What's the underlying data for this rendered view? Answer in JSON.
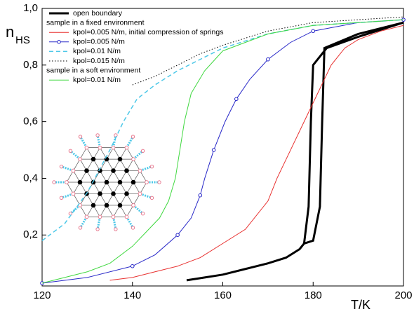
{
  "chart_data": {
    "type": "line",
    "ylabel": "n",
    "ylabel_sub": "HS",
    "xlabel": "T/K",
    "xlim": [
      120,
      200
    ],
    "xticks": [
      120,
      140,
      160,
      180,
      200
    ],
    "ylim": [
      0.02,
      1.0
    ],
    "yticks": [
      {
        "value": 0.2,
        "label": "0,2"
      },
      {
        "value": 0.4,
        "label": "0,4"
      },
      {
        "value": 0.6,
        "label": "0,6"
      },
      {
        "value": 0.8,
        "label": "0,8"
      },
      {
        "value": 1.0,
        "label": "1,0"
      }
    ],
    "legend_headings": [
      "sample in a fixed environment",
      "sample in a soft environment"
    ],
    "series": [
      {
        "name": "open boundary",
        "color": "#000000",
        "width": 3,
        "dash": "solid",
        "x": [
          152,
          156,
          160,
          165,
          170,
          174,
          177,
          178,
          179,
          179.5,
          180,
          183,
          190,
          200,
          190,
          184,
          182.5,
          182,
          181.5,
          180,
          178
        ],
        "values": [
          0.04,
          0.05,
          0.06,
          0.08,
          0.1,
          0.12,
          0.15,
          0.17,
          0.3,
          0.6,
          0.8,
          0.86,
          0.9,
          0.95,
          0.91,
          0.87,
          0.86,
          0.6,
          0.3,
          0.18,
          0.17
        ]
      },
      {
        "name": "kpol=0.005 N/m, initial compression of springs",
        "color": "#e8302f",
        "width": 1,
        "dash": "solid",
        "x": [
          135,
          140,
          145,
          150,
          155,
          160,
          165,
          170,
          172,
          175,
          178,
          181,
          184,
          187,
          190,
          195,
          200
        ],
        "values": [
          0.04,
          0.05,
          0.07,
          0.09,
          0.12,
          0.17,
          0.22,
          0.32,
          0.4,
          0.5,
          0.6,
          0.7,
          0.8,
          0.86,
          0.89,
          0.92,
          0.94
        ]
      },
      {
        "name": "kpol=0.005 N/m",
        "color": "#2828c8",
        "width": 1,
        "dash": "solid",
        "marker": "circle",
        "x": [
          120,
          130,
          140,
          145,
          150,
          153,
          155,
          156,
          158,
          160.5,
          163,
          166,
          170,
          175,
          180,
          190,
          200
        ],
        "values": [
          0.03,
          0.05,
          0.09,
          0.13,
          0.2,
          0.26,
          0.34,
          0.4,
          0.5,
          0.6,
          0.68,
          0.75,
          0.82,
          0.88,
          0.92,
          0.95,
          0.96
        ]
      },
      {
        "name": "kpol=0.01 N/m",
        "color": "#4dc8e8",
        "width": 1.5,
        "dash": "dashed",
        "x": [
          120,
          125,
          130,
          135,
          138,
          141,
          145,
          150,
          155,
          160,
          170,
          180,
          200
        ],
        "values": [
          0.18,
          0.24,
          0.35,
          0.5,
          0.6,
          0.68,
          0.73,
          0.78,
          0.82,
          0.86,
          0.91,
          0.94,
          0.96
        ]
      },
      {
        "name": "kpol=0.015 N/m",
        "color": "#000000",
        "width": 1,
        "dash": "dotted",
        "x": [
          140,
          145,
          150,
          155,
          160,
          170,
          180,
          200
        ],
        "values": [
          0.73,
          0.76,
          0.8,
          0.84,
          0.87,
          0.92,
          0.95,
          0.97
        ]
      },
      {
        "name": "kpol=0.01 N/m",
        "color": "#40d840",
        "width": 1,
        "dash": "solid",
        "x": [
          120,
          130,
          135,
          140,
          143,
          146,
          148,
          149.5,
          150.5,
          151.5,
          153,
          156,
          160,
          170,
          180,
          200
        ],
        "values": [
          0.03,
          0.07,
          0.1,
          0.16,
          0.21,
          0.26,
          0.32,
          0.4,
          0.5,
          0.6,
          0.7,
          0.78,
          0.85,
          0.91,
          0.94,
          0.96
        ]
      }
    ]
  }
}
